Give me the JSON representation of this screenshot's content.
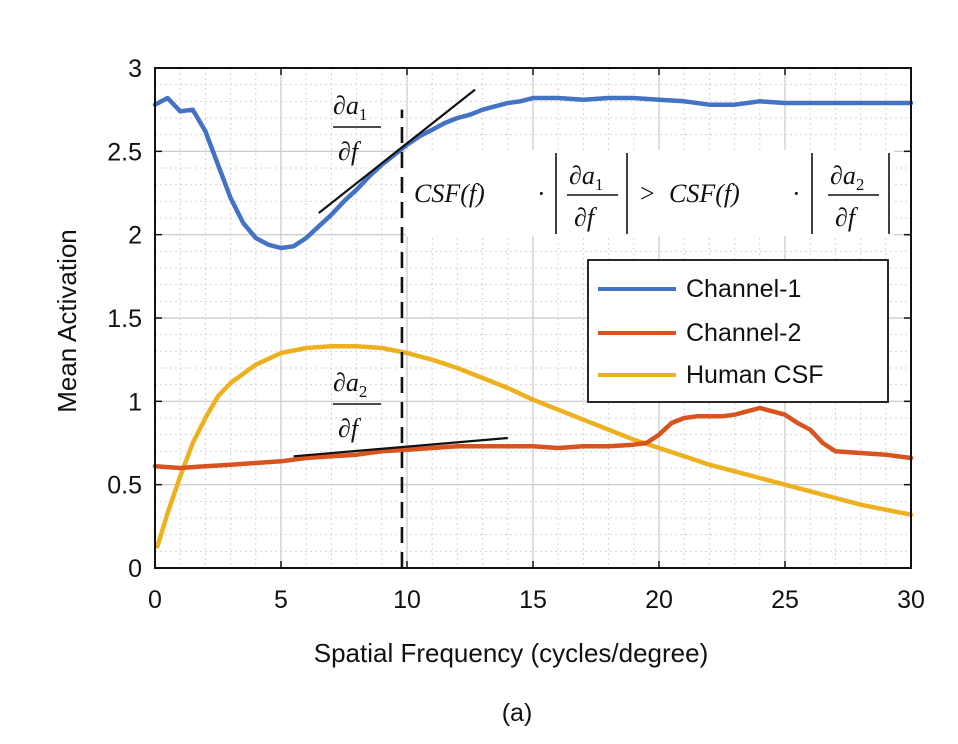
{
  "chart_data": {
    "type": "line",
    "xlabel": "Spatial Frequency (cycles/degree)",
    "ylabel": "Mean Activation",
    "xlim": [
      0,
      30
    ],
    "ylim": [
      0,
      3
    ],
    "x_ticks": [
      "0",
      "5",
      "10",
      "15",
      "20",
      "25",
      "30"
    ],
    "y_ticks": [
      "0",
      "0.5",
      "1",
      "1.5",
      "2",
      "2.5",
      "3"
    ],
    "grid": true,
    "minor_grid": true,
    "legend_position": "center-right",
    "caption": "(a)",
    "series": [
      {
        "name": "Channel-1",
        "color": "#4472C4",
        "x": [
          0,
          0.5,
          1,
          1.5,
          2,
          2.5,
          3,
          3.5,
          4,
          4.5,
          5,
          5.5,
          6,
          6.5,
          7,
          7.5,
          8,
          8.5,
          9,
          9.5,
          10,
          10.5,
          11,
          11.5,
          12,
          12.5,
          13,
          13.5,
          14,
          14.5,
          15,
          16,
          17,
          18,
          19,
          20,
          21,
          22,
          23,
          24,
          25,
          26,
          27,
          28,
          29,
          30
        ],
        "y": [
          2.78,
          2.82,
          2.74,
          2.75,
          2.62,
          2.42,
          2.22,
          2.07,
          1.98,
          1.94,
          1.92,
          1.93,
          1.98,
          2.05,
          2.12,
          2.2,
          2.27,
          2.35,
          2.42,
          2.48,
          2.54,
          2.59,
          2.63,
          2.67,
          2.7,
          2.72,
          2.75,
          2.77,
          2.79,
          2.8,
          2.82,
          2.82,
          2.81,
          2.82,
          2.82,
          2.81,
          2.8,
          2.78,
          2.78,
          2.8,
          2.79,
          2.79,
          2.79,
          2.79,
          2.79,
          2.79
        ]
      },
      {
        "name": "Channel-2",
        "color": "#D9531E",
        "x": [
          0,
          1,
          2,
          3,
          4,
          5,
          6,
          7,
          8,
          9,
          10,
          11,
          12,
          13,
          14,
          15,
          16,
          17,
          18,
          19,
          19.5,
          20,
          20.5,
          21,
          21.5,
          22,
          22.5,
          23,
          23.5,
          24,
          24.5,
          25,
          25.5,
          26,
          26.5,
          27,
          28,
          29,
          30
        ],
        "y": [
          0.61,
          0.6,
          0.61,
          0.62,
          0.63,
          0.64,
          0.66,
          0.67,
          0.68,
          0.7,
          0.71,
          0.72,
          0.73,
          0.73,
          0.73,
          0.73,
          0.72,
          0.73,
          0.73,
          0.74,
          0.75,
          0.8,
          0.87,
          0.9,
          0.91,
          0.91,
          0.91,
          0.92,
          0.94,
          0.96,
          0.94,
          0.92,
          0.87,
          0.83,
          0.75,
          0.7,
          0.69,
          0.68,
          0.66
        ]
      },
      {
        "name": "Human CSF",
        "color": "#EDB120",
        "x": [
          0.1,
          0.5,
          1,
          1.5,
          2,
          2.5,
          3,
          4,
          5,
          6,
          7,
          8,
          9,
          10,
          11,
          12,
          13,
          14,
          15,
          16,
          17,
          18,
          19,
          20,
          21,
          22,
          23,
          24,
          25,
          26,
          27,
          28,
          29,
          30
        ],
        "y": [
          0.13,
          0.33,
          0.55,
          0.75,
          0.9,
          1.03,
          1.11,
          1.22,
          1.29,
          1.32,
          1.33,
          1.33,
          1.32,
          1.29,
          1.25,
          1.2,
          1.14,
          1.08,
          1.01,
          0.95,
          0.89,
          0.83,
          0.77,
          0.72,
          0.67,
          0.62,
          0.58,
          0.54,
          0.5,
          0.46,
          0.42,
          0.38,
          0.35,
          0.32
        ]
      }
    ],
    "annotations": {
      "tangent1": {
        "x": [
          6.5,
          12.7
        ],
        "y": [
          2.13,
          2.87
        ]
      },
      "tangent2": {
        "x": [
          5.5,
          14
        ],
        "y": [
          0.67,
          0.78
        ]
      },
      "vline": {
        "x": 9.8,
        "y": [
          0,
          2.75
        ]
      },
      "label_da1_num_sym": "∂",
      "label_da1_num_var": "a",
      "label_da1_num_sub": "1",
      "label_den_sym": "∂",
      "label_den_var": "f",
      "label_da2_num_sym": "∂",
      "label_da2_num_var": "a",
      "label_da2_num_sub": "2",
      "inequality_left": "CSF(f)",
      "inequality_dot": "·",
      "inequality_gt": ">",
      "inequality_right": "CSF(f)"
    }
  }
}
